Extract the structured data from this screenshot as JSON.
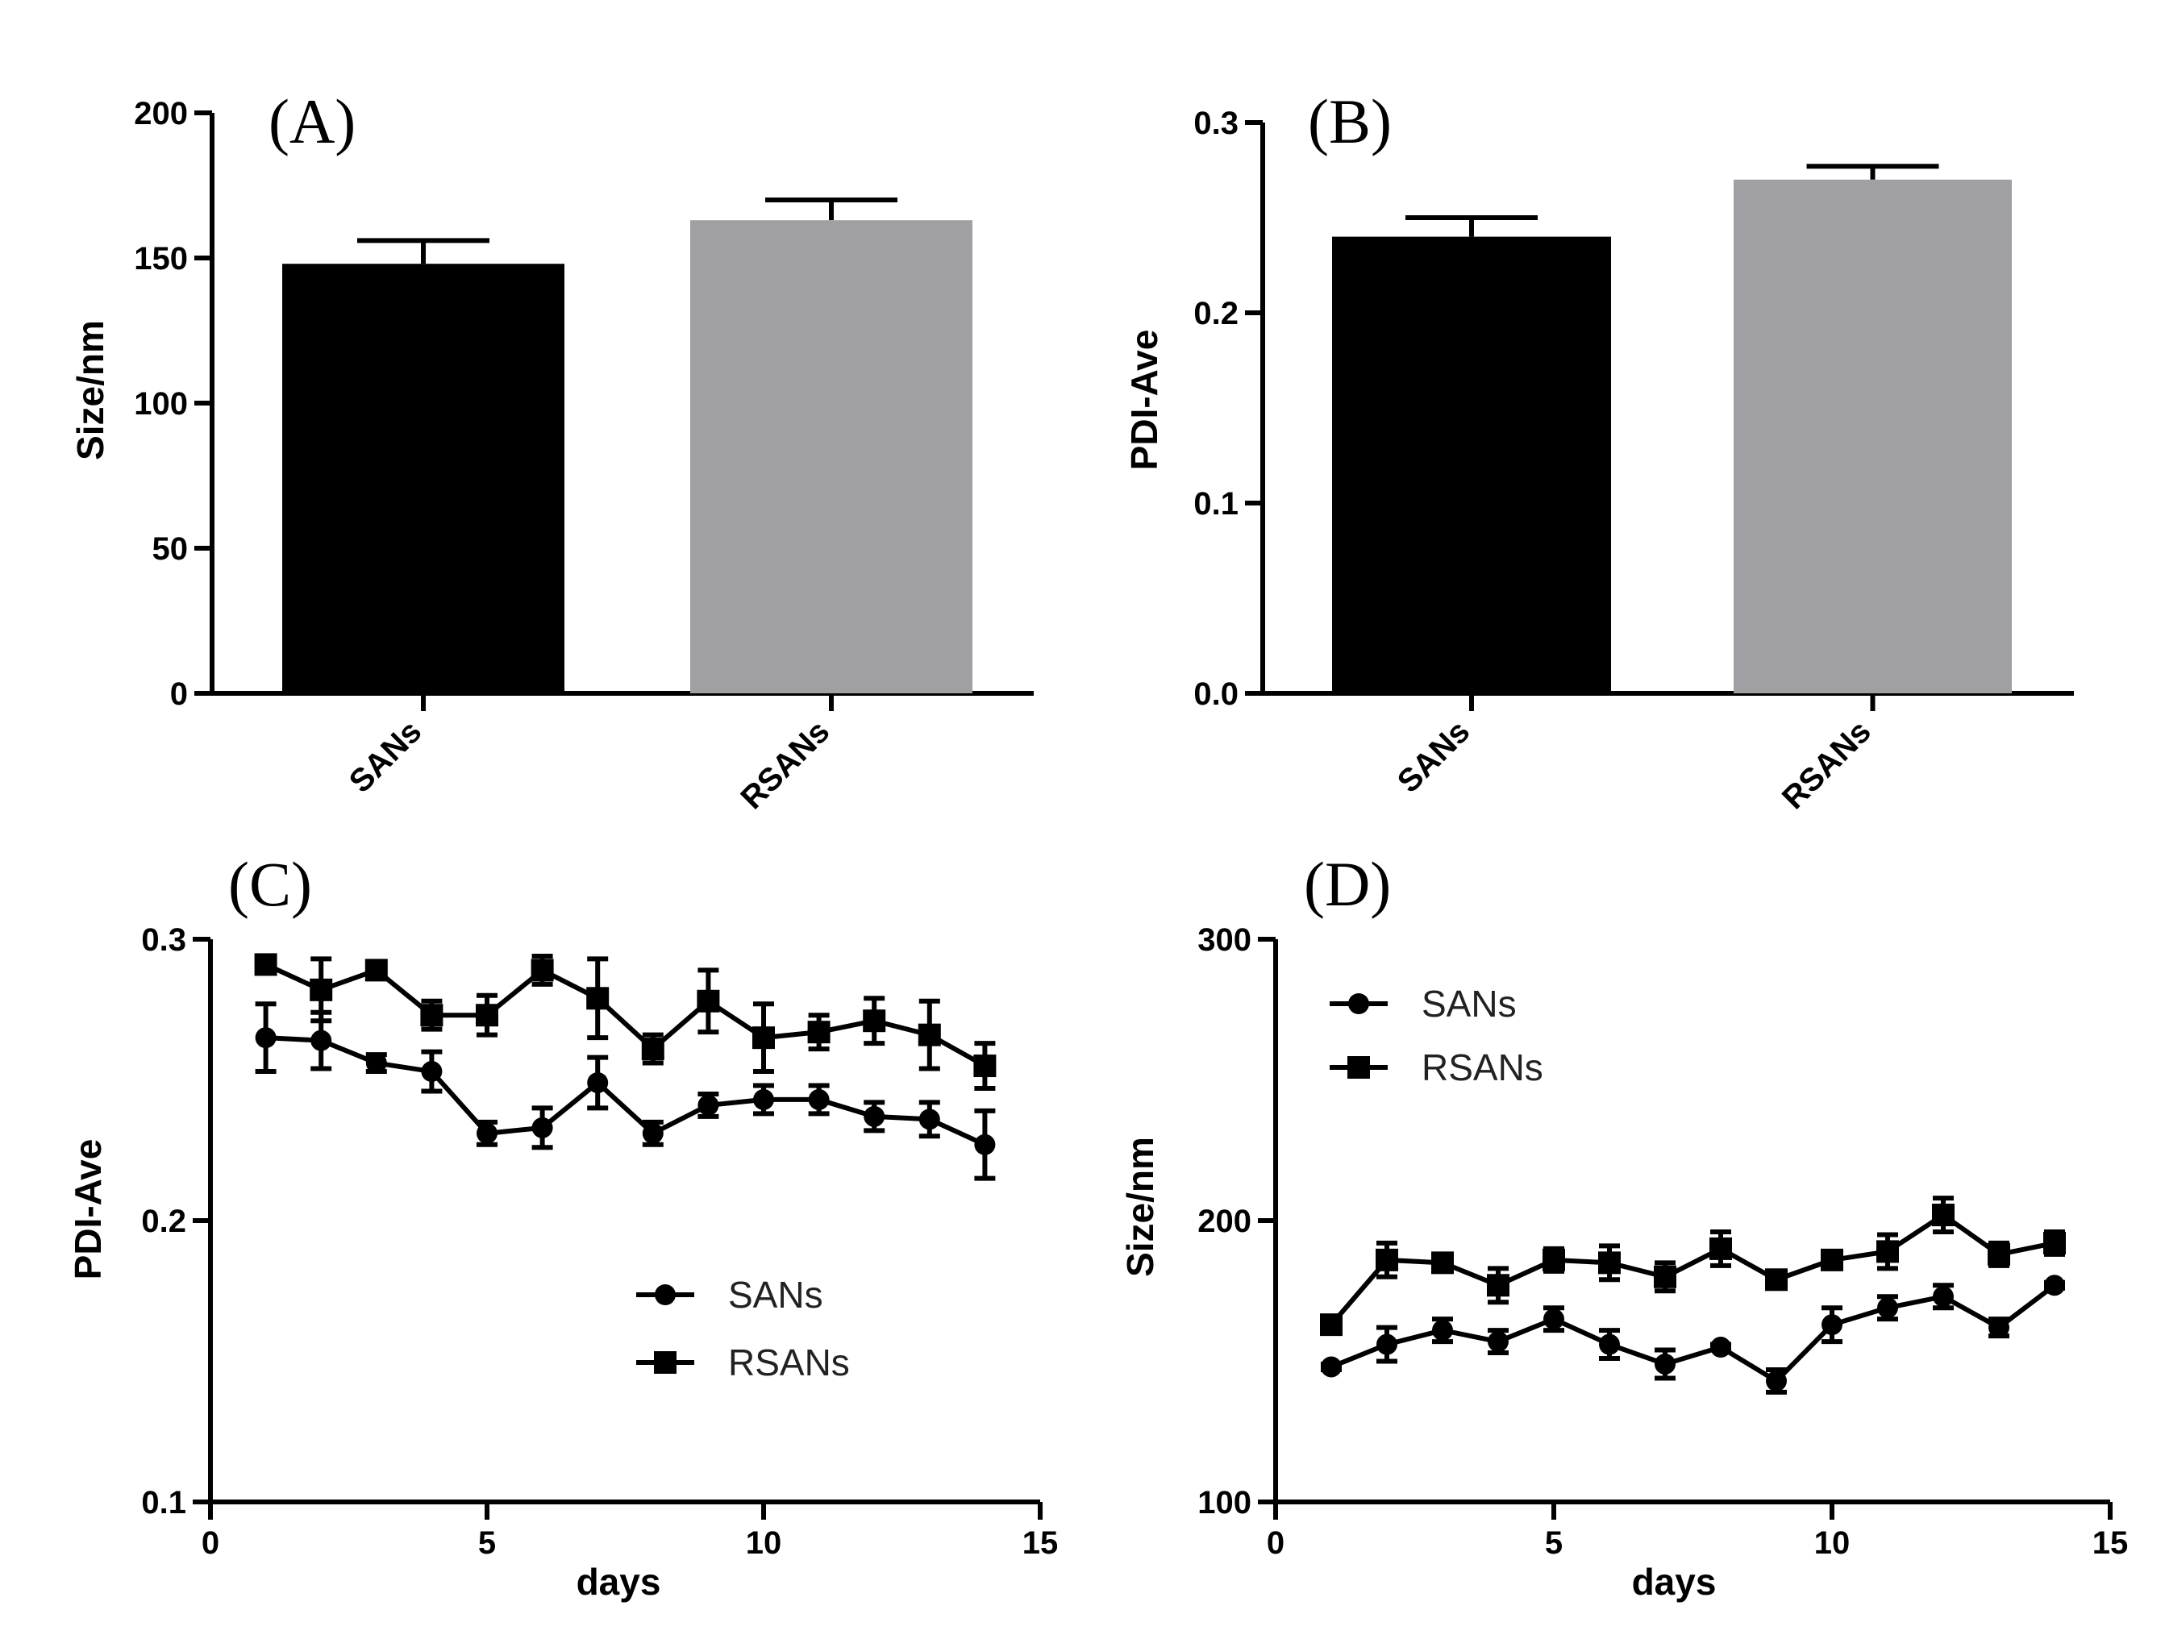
{
  "chart_data": [
    {
      "panel": "(A)",
      "type": "bar",
      "categories": [
        "SANs",
        "RSANs"
      ],
      "values": [
        148,
        163
      ],
      "errors": [
        8,
        7
      ],
      "colors": [
        "#000000",
        "#a09fa3"
      ],
      "ylabel": "Size/nm",
      "xlabel": "",
      "ylim": [
        0,
        200
      ],
      "yticks": [
        0,
        50,
        100,
        150,
        200
      ],
      "ytick_labels": [
        "0",
        "50",
        "100",
        "150",
        "200"
      ]
    },
    {
      "panel": "(B)",
      "type": "bar",
      "categories": [
        "SANs",
        "RSANs"
      ],
      "values": [
        0.24,
        0.27
      ],
      "errors": [
        0.01,
        0.007
      ],
      "colors": [
        "#000000",
        "#a09fa3"
      ],
      "ylabel": "PDI-Ave",
      "xlabel": "",
      "ylim": [
        0,
        0.3
      ],
      "yticks": [
        0,
        0.1,
        0.2,
        0.3
      ],
      "ytick_labels": [
        "0.0",
        "0.1",
        "0.2",
        "0.3"
      ]
    },
    {
      "panel": "(C)",
      "type": "line",
      "xlabel": "days",
      "ylabel": "PDI-Ave",
      "xlim": [
        0,
        15
      ],
      "ylim": [
        0.1,
        0.3
      ],
      "xticks": [
        0,
        5,
        10,
        15
      ],
      "xtick_labels": [
        "0",
        "5",
        "10",
        "15"
      ],
      "yticks": [
        0.1,
        0.2,
        0.3
      ],
      "ytick_labels": [
        "0.1",
        "0.2",
        "0.3"
      ],
      "legend_position": "center-right",
      "x": [
        1,
        2,
        3,
        4,
        5,
        6,
        7,
        8,
        9,
        10,
        11,
        12,
        13,
        14
      ],
      "series": [
        {
          "name": "SANs",
          "marker": "circle",
          "values": [
            0.265,
            0.264,
            0.256,
            0.253,
            0.231,
            0.233,
            0.249,
            0.231,
            0.241,
            0.243,
            0.243,
            0.237,
            0.236,
            0.227
          ],
          "errors": [
            0.012,
            0.01,
            0.003,
            0.007,
            0.004,
            0.007,
            0.009,
            0.004,
            0.004,
            0.005,
            0.005,
            0.005,
            0.006,
            0.012
          ]
        },
        {
          "name": "RSANs",
          "marker": "square",
          "values": [
            0.291,
            0.282,
            0.289,
            0.273,
            0.273,
            0.289,
            0.279,
            0.261,
            0.278,
            0.265,
            0.267,
            0.271,
            0.266,
            0.255
          ],
          "errors": [
            0.002,
            0.011,
            0.003,
            0.005,
            0.007,
            0.005,
            0.014,
            0.005,
            0.011,
            0.012,
            0.006,
            0.008,
            0.012,
            0.008
          ]
        }
      ]
    },
    {
      "panel": "(D)",
      "type": "line",
      "xlabel": "days",
      "ylabel": "Size/nm",
      "xlim": [
        0,
        15
      ],
      "ylim": [
        100,
        300
      ],
      "xticks": [
        0,
        5,
        10,
        15
      ],
      "xtick_labels": [
        "0",
        "5",
        "10",
        "15"
      ],
      "yticks": [
        100,
        200,
        300
      ],
      "ytick_labels": [
        "100",
        "200",
        "300"
      ],
      "legend_position": "top-left",
      "x": [
        1,
        2,
        3,
        4,
        5,
        6,
        7,
        8,
        9,
        10,
        11,
        12,
        13,
        14
      ],
      "series": [
        {
          "name": "SANs",
          "marker": "circle",
          "values": [
            148,
            156,
            161,
            157,
            165,
            156,
            149,
            155,
            143,
            163,
            169,
            173,
            162,
            177
          ],
          "errors": [
            1,
            6,
            4,
            4,
            4,
            5,
            5,
            1,
            4,
            6,
            4,
            4,
            3,
            1
          ]
        },
        {
          "name": "RSANs",
          "marker": "square",
          "values": [
            163,
            186,
            185,
            177,
            186,
            185,
            180,
            190,
            179,
            186,
            189,
            202,
            188,
            192
          ],
          "errors": [
            2,
            6,
            2,
            6,
            4,
            6,
            5,
            6,
            3,
            2,
            6,
            6,
            4,
            4
          ]
        }
      ]
    }
  ]
}
